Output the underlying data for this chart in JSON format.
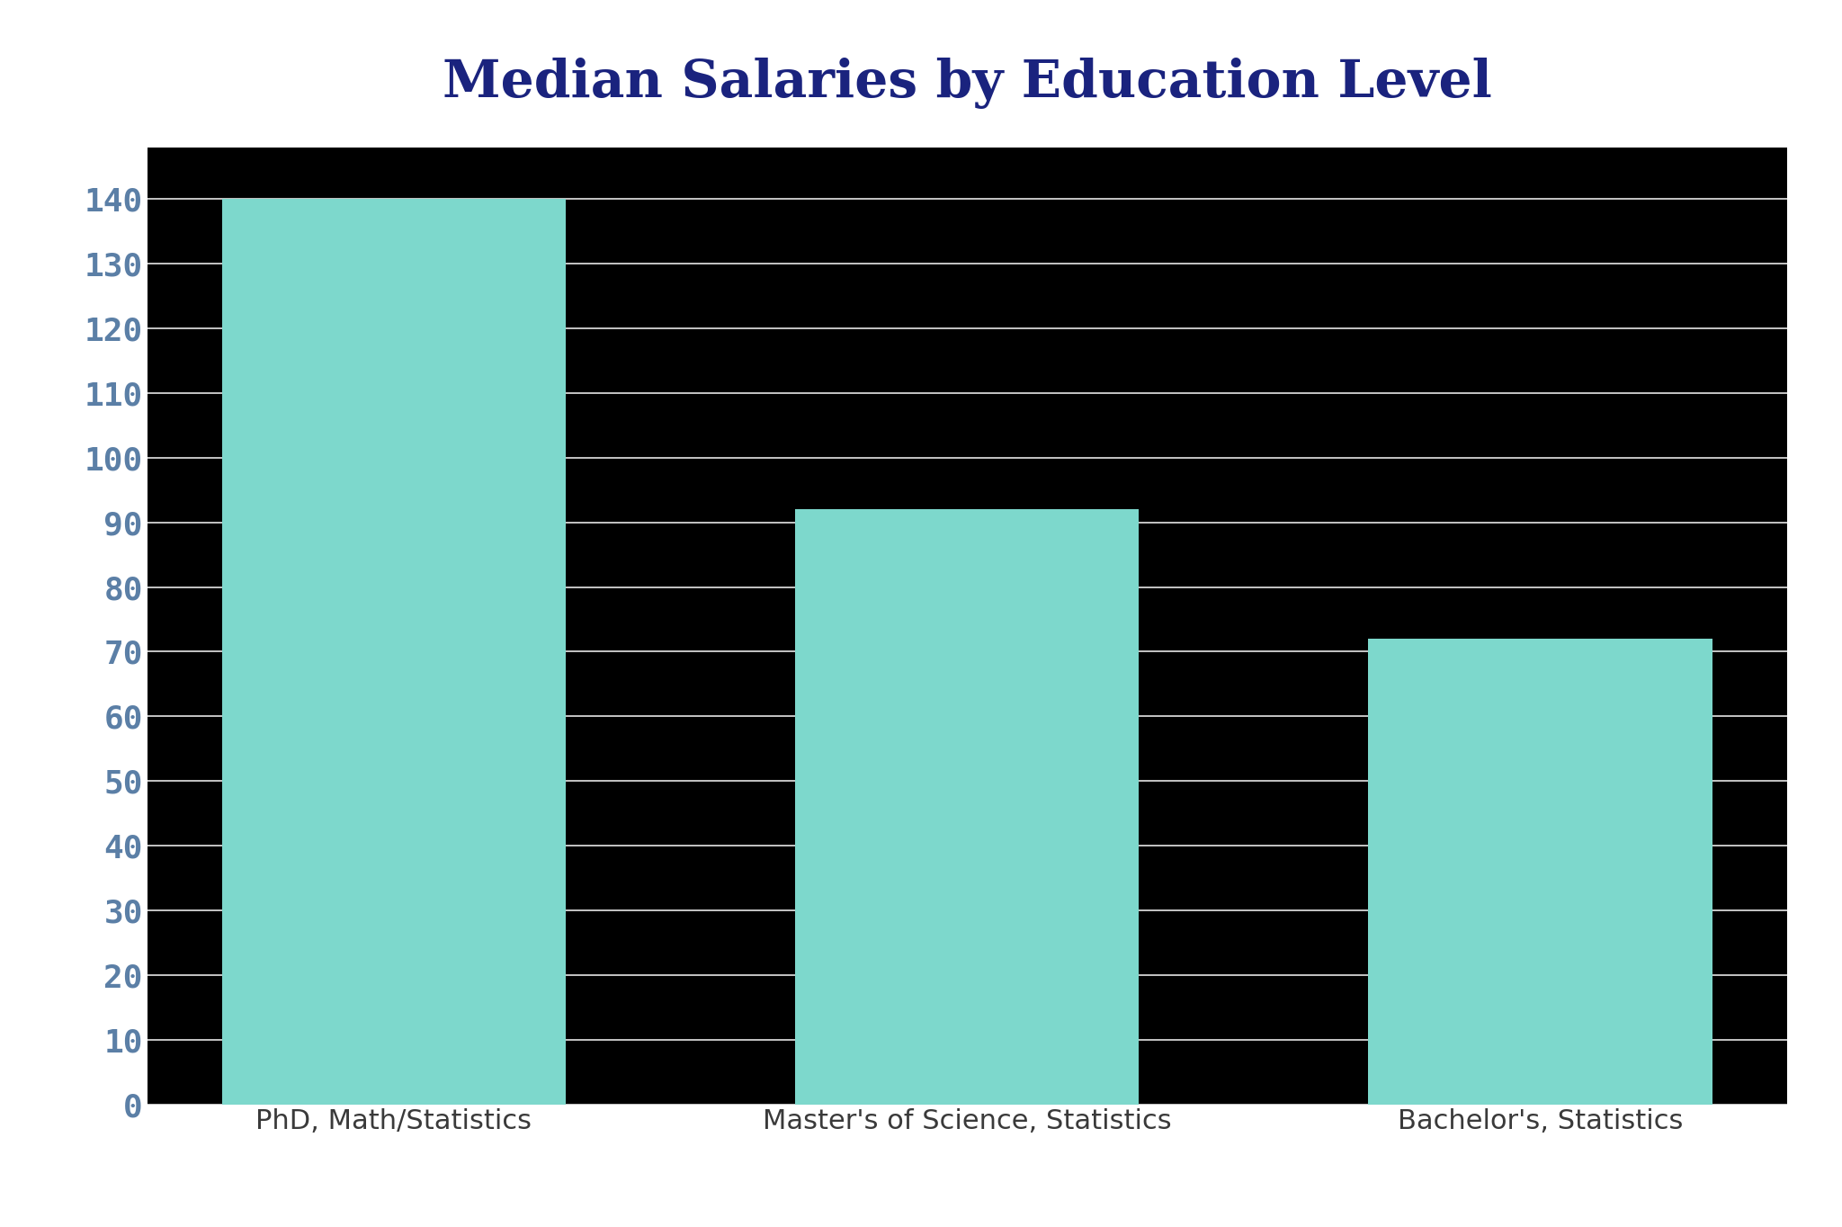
{
  "title": "Median Salaries by Education Level",
  "title_color": "#1a237e",
  "title_fontsize": 42,
  "background_color": "#ffffff",
  "plot_bg_color": "#000000",
  "categories": [
    "PhD, Math/Statistics",
    "Master's of Science, Statistics",
    "Bachelor's, Statistics"
  ],
  "values": [
    140,
    92,
    72
  ],
  "bar_color": "#7dd8cc",
  "bar_width": 0.6,
  "ylim": [
    0,
    148
  ],
  "yticks": [
    0,
    10,
    20,
    30,
    40,
    50,
    60,
    70,
    80,
    90,
    100,
    110,
    120,
    130,
    140
  ],
  "tick_label_color": "#5b7fa6",
  "tick_label_fontsize": 26,
  "xlabel_color": "#3a3a3a",
  "xlabel_fontsize": 22,
  "grid_color": "#ffffff",
  "grid_alpha": 0.9,
  "grid_linewidth": 1.2
}
